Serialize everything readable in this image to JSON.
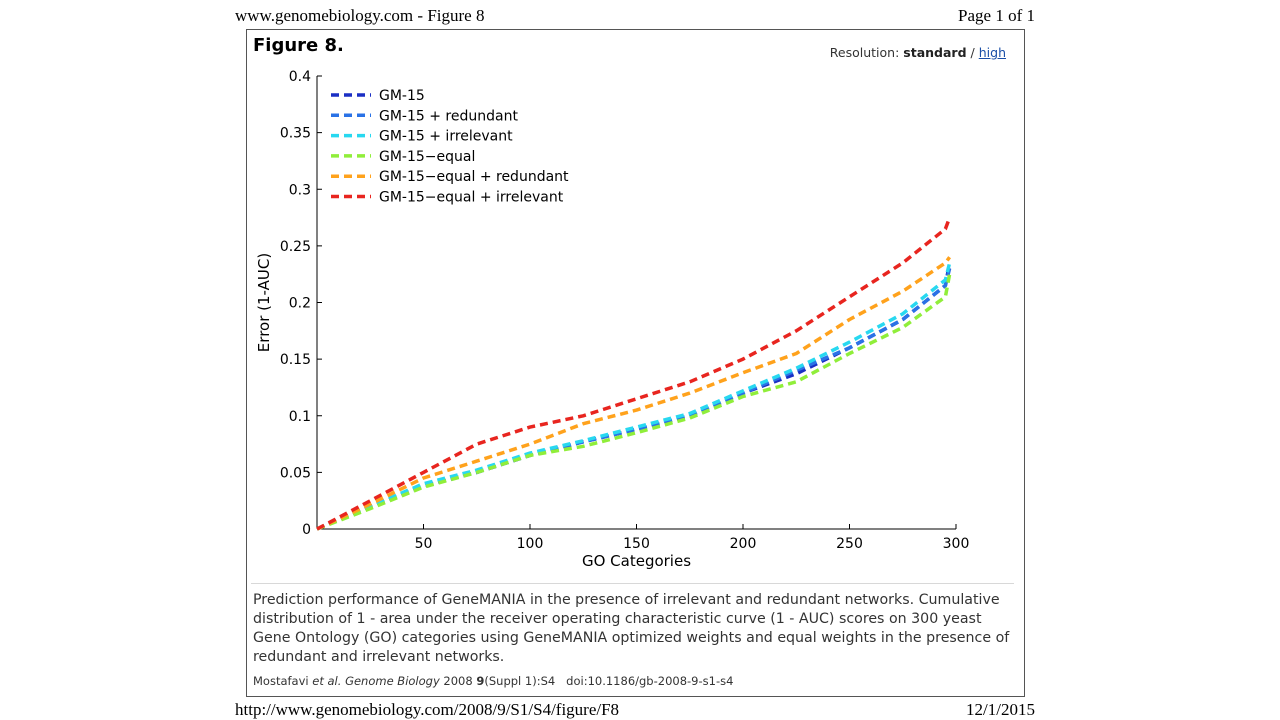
{
  "print_header": {
    "left": "www.genomebiology.com - Figure 8",
    "right": "Page 1 of 1"
  },
  "print_footer": {
    "left": "http://www.genomebiology.com/2008/9/S1/S4/figure/F8",
    "right": "12/1/2015"
  },
  "figure": {
    "title": "Figure 8.",
    "resolution_label": "Resolution:",
    "resolution_current": "standard",
    "resolution_sep": "/",
    "resolution_link": "high"
  },
  "caption": "Prediction performance of GeneMANIA in the presence of irrelevant and redundant networks. Cumulative distribution of 1 - area under the receiver operating characteristic curve (1 - AUC) scores on 300 yeast Gene Ontology (GO) categories using GeneMANIA optimized weights and equal weights in the presence of redundant and irrelevant networks.",
  "citation": {
    "authors": "Mostafavi",
    "etal": "et al.",
    "journal": "Genome Biology",
    "year": "2008",
    "volume": "9",
    "issue": "(Suppl 1):S4",
    "doi": "doi:10.1186/gb-2008-9-s1-s4"
  },
  "chart_data": {
    "type": "line",
    "title": "",
    "xlabel": "GO Categories",
    "ylabel": "Error (1-AUC)",
    "xlim": [
      0,
      300
    ],
    "ylim": [
      0,
      0.4
    ],
    "xticks": [
      50,
      100,
      150,
      200,
      250,
      300
    ],
    "xtick_labels": [
      "50",
      "100",
      "150",
      "200",
      "250",
      "300"
    ],
    "yticks": [
      0,
      0.05,
      0.1,
      0.15,
      0.2,
      0.25,
      0.3,
      0.35,
      0.4
    ],
    "ytick_labels": [
      "0",
      "0.05",
      "0.1",
      "0.15",
      "0.2",
      "0.25",
      "0.3",
      "0.35",
      "0.4"
    ],
    "grid": false,
    "legend_position": "top-left",
    "line_style": "dashed",
    "x": [
      0,
      25,
      50,
      75,
      100,
      125,
      150,
      175,
      200,
      225,
      250,
      275,
      295,
      297
    ],
    "series": [
      {
        "name": "GM-15",
        "color": "#1a2fc4",
        "values": [
          0,
          0.02,
          0.038,
          0.05,
          0.065,
          0.077,
          0.088,
          0.1,
          0.12,
          0.137,
          0.16,
          0.185,
          0.215,
          0.235
        ]
      },
      {
        "name": "GM-15 + redundant",
        "color": "#2a72e6",
        "values": [
          0,
          0.02,
          0.038,
          0.05,
          0.065,
          0.077,
          0.088,
          0.1,
          0.12,
          0.14,
          0.16,
          0.185,
          0.215,
          0.23
        ]
      },
      {
        "name": "GM-15 + irrelevant",
        "color": "#28d8f0",
        "values": [
          0,
          0.02,
          0.04,
          0.052,
          0.067,
          0.078,
          0.09,
          0.102,
          0.122,
          0.142,
          0.165,
          0.19,
          0.22,
          0.235
        ]
      },
      {
        "name": "GM-15−equal",
        "color": "#90ee3a",
        "values": [
          0,
          0.018,
          0.037,
          0.05,
          0.065,
          0.073,
          0.085,
          0.098,
          0.117,
          0.13,
          0.155,
          0.178,
          0.205,
          0.225
        ]
      },
      {
        "name": "GM-15−equal + redundant",
        "color": "#ffa21c",
        "values": [
          0,
          0.022,
          0.045,
          0.06,
          0.075,
          0.093,
          0.105,
          0.12,
          0.138,
          0.155,
          0.185,
          0.21,
          0.235,
          0.24
        ]
      },
      {
        "name": "GM-15−equal + irrelevant",
        "color": "#e8251f",
        "values": [
          0,
          0.025,
          0.05,
          0.075,
          0.09,
          0.1,
          0.115,
          0.13,
          0.15,
          0.175,
          0.205,
          0.235,
          0.265,
          0.275
        ]
      }
    ]
  }
}
